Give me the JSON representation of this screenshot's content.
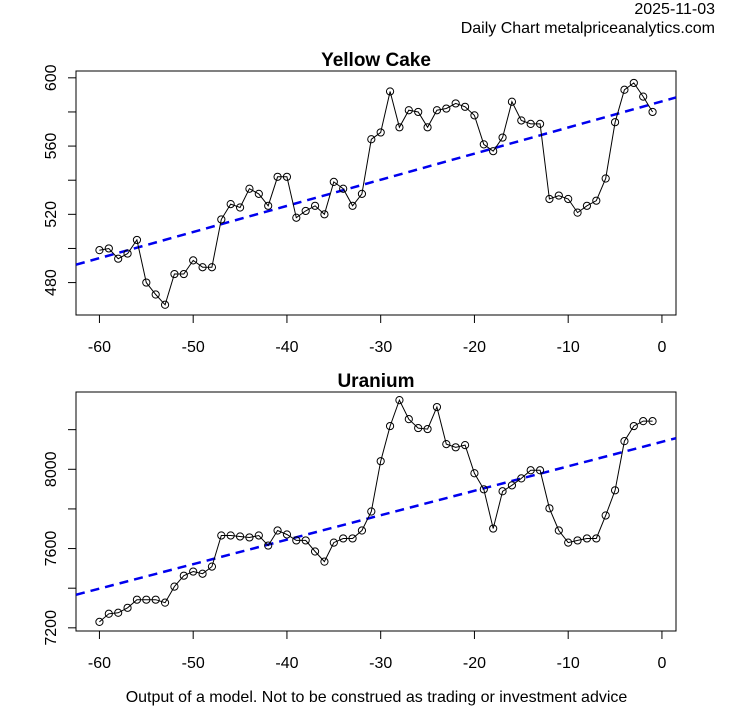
{
  "header": {
    "date": "2025-11-03",
    "source": "Daily Chart metalpriceanalytics.com"
  },
  "footer": "Output of a model. Not to be construed as trading or investment advice",
  "colors": {
    "line": "#000000",
    "trend": "#0000ee",
    "frame": "#000000"
  },
  "chart_data": [
    {
      "type": "line",
      "title": "Yellow Cake",
      "xlabel": "",
      "ylabel": "",
      "xlim": [
        -62.5,
        1.5
      ],
      "ylim": [
        461,
        604
      ],
      "xticks": [
        -60,
        -50,
        -40,
        -30,
        -20,
        -10,
        0
      ],
      "xtick_labels": [
        "-60",
        "-50",
        "-40",
        "-30",
        "-20",
        "-10",
        "0"
      ],
      "yticks": [
        480,
        500,
        520,
        540,
        560,
        580,
        600
      ],
      "ytick_labels": [
        "480",
        "",
        "520",
        "",
        "560",
        "",
        "600"
      ],
      "grid": false,
      "x": [
        -60,
        -59,
        -58,
        -57,
        -56,
        -55,
        -54,
        -53,
        -52,
        -51,
        -50,
        -49,
        -48,
        -47,
        -46,
        -45,
        -44,
        -43,
        -42,
        -41,
        -40,
        -39,
        -38,
        -37,
        -36,
        -35,
        -34,
        -33,
        -32,
        -31,
        -30,
        -29,
        -28,
        -27,
        -26,
        -25,
        -24,
        -23,
        -22,
        -21,
        -20,
        -19,
        -18,
        -17,
        -16,
        -15,
        -14,
        -13,
        -12,
        -11,
        -10,
        -9,
        -8,
        -7,
        -6,
        -5,
        -4,
        -3,
        -2,
        -1
      ],
      "series": [
        {
          "name": "price",
          "style": "line-points",
          "values": [
            499,
            500,
            494,
            497,
            505,
            480,
            473,
            467,
            485,
            485,
            493,
            489,
            489,
            517,
            526,
            524,
            535,
            532,
            525,
            542,
            542,
            518,
            522,
            525,
            520,
            539,
            535,
            525,
            532,
            564,
            568,
            592,
            571,
            581,
            580,
            571,
            581,
            582,
            585,
            583,
            578,
            561,
            557,
            565,
            586,
            575,
            573,
            573,
            529,
            531,
            529,
            521,
            525,
            528,
            541,
            574,
            593,
            597,
            589,
            580
          ]
        },
        {
          "name": "trend",
          "style": "dashed",
          "x": [
            -62.5,
            1.5
          ],
          "values": [
            490.5,
            588.5
          ]
        }
      ]
    },
    {
      "type": "line",
      "title": "Uranium",
      "xlabel": "",
      "ylabel": "",
      "xlim": [
        -62.5,
        1.5
      ],
      "ylim": [
        7184,
        8390
      ],
      "xticks": [
        -60,
        -50,
        -40,
        -30,
        -20,
        -10,
        0
      ],
      "xtick_labels": [
        "-60",
        "-50",
        "-40",
        "-30",
        "-20",
        "-10",
        "0"
      ],
      "yticks": [
        7200,
        7400,
        7600,
        7800,
        8000,
        8200
      ],
      "ytick_labels": [
        "7200",
        "",
        "7600",
        "",
        "8000",
        ""
      ],
      "grid": false,
      "x": [
        -60,
        -59,
        -58,
        -57,
        -56,
        -55,
        -54,
        -53,
        -52,
        -51,
        -50,
        -49,
        -48,
        -47,
        -46,
        -45,
        -44,
        -43,
        -42,
        -41,
        -40,
        -39,
        -38,
        -37,
        -36,
        -35,
        -34,
        -33,
        -32,
        -31,
        -30,
        -29,
        -28,
        -27,
        -26,
        -25,
        -24,
        -23,
        -22,
        -21,
        -20,
        -19,
        -18,
        -17,
        -16,
        -15,
        -14,
        -13,
        -12,
        -11,
        -10,
        -9,
        -8,
        -7,
        -6,
        -5,
        -4,
        -3,
        -2,
        -1
      ],
      "series": [
        {
          "name": "price",
          "style": "line-points",
          "values": [
            7230,
            7271,
            7276,
            7301,
            7342,
            7342,
            7342,
            7327,
            7408,
            7463,
            7484,
            7473,
            7509,
            7666,
            7666,
            7661,
            7656,
            7666,
            7615,
            7691,
            7671,
            7641,
            7641,
            7585,
            7534,
            7630,
            7651,
            7651,
            7691,
            7787,
            8041,
            8218,
            8349,
            8253,
            8208,
            8203,
            8314,
            8127,
            8111,
            8122,
            7980,
            7899,
            7701,
            7889,
            7919,
            7954,
            7995,
            7995,
            7803,
            7691,
            7630,
            7641,
            7651,
            7651,
            7767,
            7894,
            8142,
            8218,
            8243,
            8243
          ]
        },
        {
          "name": "trend",
          "style": "dashed",
          "x": [
            -62.5,
            1.5
          ],
          "values": [
            7367,
            8157
          ]
        }
      ]
    }
  ]
}
